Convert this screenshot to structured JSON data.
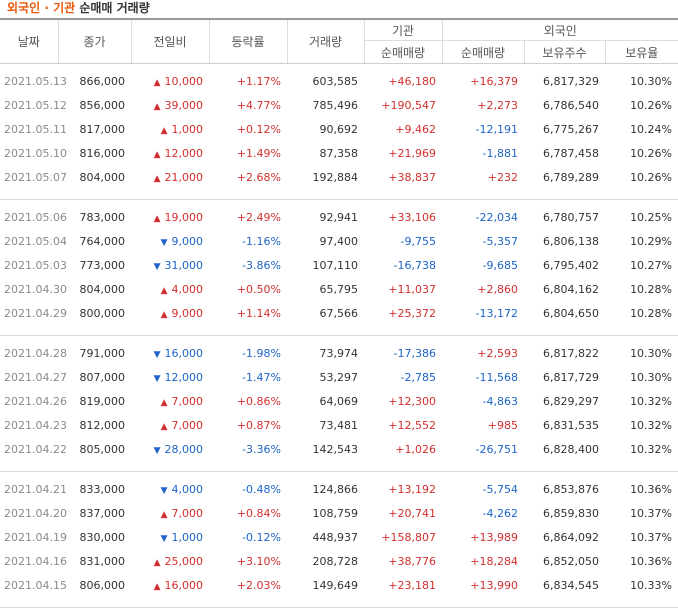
{
  "title": {
    "part1": "외국인",
    "sep": "·",
    "part2": "기관",
    "part3": "순매매 거래량"
  },
  "header": {
    "date": "날짜",
    "close": "종가",
    "change": "전일비",
    "rate": "등락률",
    "volume": "거래량",
    "institution_group": "기관",
    "institution_net": "순매매량",
    "foreign_group": "외국인",
    "foreign_net": "순매매량",
    "foreign_holding": "보유주수",
    "foreign_ratio": "보유율"
  },
  "icons": {
    "up": "triangle-up-icon",
    "down": "triangle-down-icon"
  },
  "colors": {
    "up": "#d32f2f",
    "down": "#1e64c8",
    "accent": "#e8590c"
  },
  "groups": [
    [
      {
        "date": "2021.05.13",
        "close": "866,000",
        "dir": "up",
        "change": "10,000",
        "rate": "+1.17%",
        "volume": "603,585",
        "inst": "+46,180",
        "foreign": "+16,379",
        "holding": "6,817,329",
        "ratio": "10.30%"
      },
      {
        "date": "2021.05.12",
        "close": "856,000",
        "dir": "up",
        "change": "39,000",
        "rate": "+4.77%",
        "volume": "785,496",
        "inst": "+190,547",
        "foreign": "+2,273",
        "holding": "6,786,540",
        "ratio": "10.26%"
      },
      {
        "date": "2021.05.11",
        "close": "817,000",
        "dir": "up",
        "change": "1,000",
        "rate": "+0.12%",
        "volume": "90,692",
        "inst": "+9,462",
        "foreign": "-12,191",
        "holding": "6,775,267",
        "ratio": "10.24%"
      },
      {
        "date": "2021.05.10",
        "close": "816,000",
        "dir": "up",
        "change": "12,000",
        "rate": "+1.49%",
        "volume": "87,358",
        "inst": "+21,969",
        "foreign": "-1,881",
        "holding": "6,787,458",
        "ratio": "10.26%"
      },
      {
        "date": "2021.05.07",
        "close": "804,000",
        "dir": "up",
        "change": "21,000",
        "rate": "+2.68%",
        "volume": "192,884",
        "inst": "+38,837",
        "foreign": "+232",
        "holding": "6,789,289",
        "ratio": "10.26%"
      }
    ],
    [
      {
        "date": "2021.05.06",
        "close": "783,000",
        "dir": "up",
        "change": "19,000",
        "rate": "+2.49%",
        "volume": "92,941",
        "inst": "+33,106",
        "foreign": "-22,034",
        "holding": "6,780,757",
        "ratio": "10.25%"
      },
      {
        "date": "2021.05.04",
        "close": "764,000",
        "dir": "down",
        "change": "9,000",
        "rate": "-1.16%",
        "volume": "97,400",
        "inst": "-9,755",
        "foreign": "-5,357",
        "holding": "6,806,138",
        "ratio": "10.29%"
      },
      {
        "date": "2021.05.03",
        "close": "773,000",
        "dir": "down",
        "change": "31,000",
        "rate": "-3.86%",
        "volume": "107,110",
        "inst": "-16,738",
        "foreign": "-9,685",
        "holding": "6,795,402",
        "ratio": "10.27%"
      },
      {
        "date": "2021.04.30",
        "close": "804,000",
        "dir": "up",
        "change": "4,000",
        "rate": "+0.50%",
        "volume": "65,795",
        "inst": "+11,037",
        "foreign": "+2,860",
        "holding": "6,804,162",
        "ratio": "10.28%"
      },
      {
        "date": "2021.04.29",
        "close": "800,000",
        "dir": "up",
        "change": "9,000",
        "rate": "+1.14%",
        "volume": "67,566",
        "inst": "+25,372",
        "foreign": "-13,172",
        "holding": "6,804,650",
        "ratio": "10.28%"
      }
    ],
    [
      {
        "date": "2021.04.28",
        "close": "791,000",
        "dir": "down",
        "change": "16,000",
        "rate": "-1.98%",
        "volume": "73,974",
        "inst": "-17,386",
        "foreign": "+2,593",
        "holding": "6,817,822",
        "ratio": "10.30%"
      },
      {
        "date": "2021.04.27",
        "close": "807,000",
        "dir": "down",
        "change": "12,000",
        "rate": "-1.47%",
        "volume": "53,297",
        "inst": "-2,785",
        "foreign": "-11,568",
        "holding": "6,817,729",
        "ratio": "10.30%"
      },
      {
        "date": "2021.04.26",
        "close": "819,000",
        "dir": "up",
        "change": "7,000",
        "rate": "+0.86%",
        "volume": "64,069",
        "inst": "+12,300",
        "foreign": "-4,863",
        "holding": "6,829,297",
        "ratio": "10.32%"
      },
      {
        "date": "2021.04.23",
        "close": "812,000",
        "dir": "up",
        "change": "7,000",
        "rate": "+0.87%",
        "volume": "73,481",
        "inst": "+12,552",
        "foreign": "+985",
        "holding": "6,831,535",
        "ratio": "10.32%"
      },
      {
        "date": "2021.04.22",
        "close": "805,000",
        "dir": "down",
        "change": "28,000",
        "rate": "-3.36%",
        "volume": "142,543",
        "inst": "+1,026",
        "foreign": "-26,751",
        "holding": "6,828,400",
        "ratio": "10.32%"
      }
    ],
    [
      {
        "date": "2021.04.21",
        "close": "833,000",
        "dir": "down",
        "change": "4,000",
        "rate": "-0.48%",
        "volume": "124,866",
        "inst": "+13,192",
        "foreign": "-5,754",
        "holding": "6,853,876",
        "ratio": "10.36%"
      },
      {
        "date": "2021.04.20",
        "close": "837,000",
        "dir": "up",
        "change": "7,000",
        "rate": "+0.84%",
        "volume": "108,759",
        "inst": "+20,741",
        "foreign": "-4,262",
        "holding": "6,859,830",
        "ratio": "10.37%"
      },
      {
        "date": "2021.04.19",
        "close": "830,000",
        "dir": "down",
        "change": "1,000",
        "rate": "-0.12%",
        "volume": "448,937",
        "inst": "+158,807",
        "foreign": "+13,989",
        "holding": "6,864,092",
        "ratio": "10.37%"
      },
      {
        "date": "2021.04.16",
        "close": "831,000",
        "dir": "up",
        "change": "25,000",
        "rate": "+3.10%",
        "volume": "208,728",
        "inst": "+38,776",
        "foreign": "+18,284",
        "holding": "6,852,050",
        "ratio": "10.36%"
      },
      {
        "date": "2021.04.15",
        "close": "806,000",
        "dir": "up",
        "change": "16,000",
        "rate": "+2.03%",
        "volume": "149,649",
        "inst": "+23,181",
        "foreign": "+13,990",
        "holding": "6,834,545",
        "ratio": "10.33%"
      }
    ]
  ]
}
